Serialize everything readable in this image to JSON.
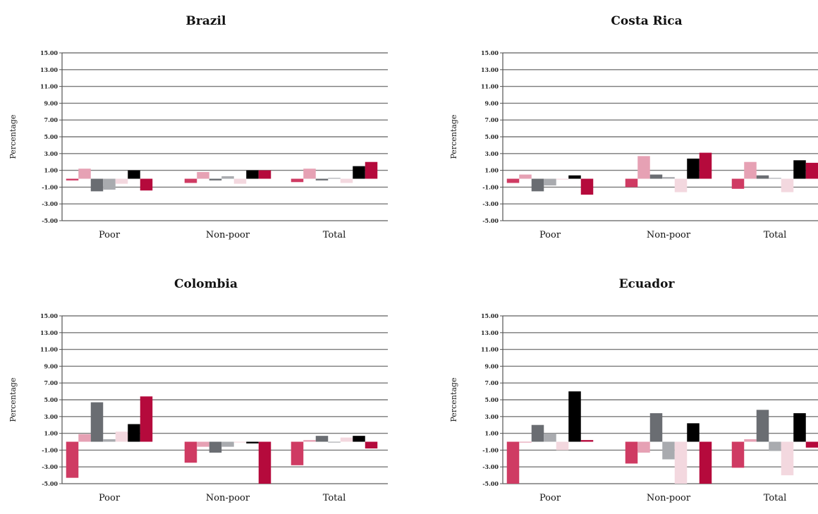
{
  "palette": [
    "#cf3b63",
    "#e6a1b4",
    "#6a6d72",
    "#a9abaf",
    "#f3d8df",
    "#000000",
    "#b50a3c"
  ],
  "chart_data": [
    {
      "type": "bar",
      "title": "Brazil",
      "ylabel": "Percentage",
      "ylim": [
        -5,
        15
      ],
      "yticks": [
        "15.00",
        "13.00",
        "11.00",
        "9.00",
        "7.00",
        "5.00",
        "3.00",
        "1.00",
        "-1.00",
        "-3.00",
        "-5.00"
      ],
      "categories": [
        "Poor",
        "Non-poor",
        "Total"
      ],
      "series": [
        {
          "values": [
            -0.2,
            -0.5,
            -0.4
          ]
        },
        {
          "values": [
            1.2,
            0.8,
            1.2
          ]
        },
        {
          "values": [
            -1.5,
            -0.2,
            -0.2
          ]
        },
        {
          "values": [
            -1.3,
            0.3,
            0.1
          ]
        },
        {
          "values": [
            -0.6,
            -0.6,
            -0.5
          ]
        },
        {
          "values": [
            1.0,
            1.0,
            1.5
          ]
        },
        {
          "values": [
            -1.4,
            1.0,
            2.0
          ]
        }
      ]
    },
    {
      "type": "bar",
      "title": "Costa Rica",
      "ylabel": "Percentage",
      "ylim": [
        -5,
        15
      ],
      "yticks": [
        "15.00",
        "13.00",
        "11.00",
        "9.00",
        "7.00",
        "5.00",
        "3.00",
        "1.00",
        "-1.00",
        "-3.00",
        "-5.00"
      ],
      "categories": [
        "Poor",
        "Non-poor",
        "Total"
      ],
      "series": [
        {
          "values": [
            -0.5,
            -1.0,
            -1.2
          ]
        },
        {
          "values": [
            0.5,
            2.7,
            2.0
          ]
        },
        {
          "values": [
            -1.5,
            0.5,
            0.4
          ]
        },
        {
          "values": [
            -0.8,
            0.2,
            0.1
          ]
        },
        {
          "values": [
            -0.1,
            -1.6,
            -1.6
          ]
        },
        {
          "values": [
            0.4,
            2.4,
            2.2
          ]
        },
        {
          "values": [
            -1.9,
            3.1,
            1.9
          ]
        }
      ]
    },
    {
      "type": "bar",
      "title": "Colombia",
      "ylabel": "Percentage",
      "ylim": [
        -5,
        15
      ],
      "yticks": [
        "15.00",
        "13.00",
        "11.00",
        "9.00",
        "7.00",
        "5.00",
        "3.00",
        "1.00",
        "-1.00",
        "-3.00",
        "-5.00"
      ],
      "categories": [
        "Poor",
        "Non-poor",
        "Total"
      ],
      "series": [
        {
          "values": [
            -4.3,
            -2.5,
            -2.8
          ]
        },
        {
          "values": [
            0.9,
            -0.6,
            0.2
          ]
        },
        {
          "values": [
            4.7,
            -1.3,
            0.7
          ]
        },
        {
          "values": [
            0.3,
            -0.6,
            -0.1
          ]
        },
        {
          "values": [
            1.2,
            -0.1,
            0.5
          ]
        },
        {
          "values": [
            2.1,
            -0.2,
            0.7
          ]
        },
        {
          "values": [
            5.4,
            -5.0,
            -0.8
          ]
        }
      ]
    },
    {
      "type": "bar",
      "title": "Ecuador",
      "ylabel": "Percentage",
      "ylim": [
        -5,
        15
      ],
      "yticks": [
        "15.00",
        "13.00",
        "11.00",
        "9.00",
        "7.00",
        "5.00",
        "3.00",
        "1.00",
        "-1.00",
        "-3.00",
        "-5.00"
      ],
      "categories": [
        "Poor",
        "Non-poor",
        "Total"
      ],
      "series": [
        {
          "values": [
            -5.0,
            -2.6,
            -3.1
          ]
        },
        {
          "values": [
            -0.1,
            -1.3,
            0.3
          ]
        },
        {
          "values": [
            2.0,
            3.4,
            3.8
          ]
        },
        {
          "values": [
            1.0,
            -2.1,
            -1.1
          ]
        },
        {
          "values": [
            -1.0,
            -5.0,
            -4.0
          ]
        },
        {
          "values": [
            6.0,
            2.2,
            3.4
          ]
        },
        {
          "values": [
            0.2,
            -5.0,
            -0.7
          ]
        }
      ]
    }
  ]
}
